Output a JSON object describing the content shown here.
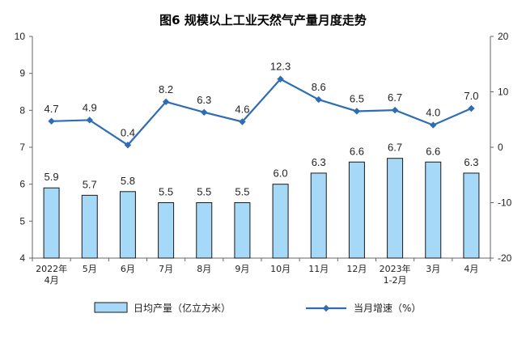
{
  "chart_data": {
    "type": "bar+line",
    "title": "图6  规模以上工业天然气产量月度走势",
    "categories": [
      "2022年\n4月",
      "5月",
      "6月",
      "7月",
      "8月",
      "9月",
      "10月",
      "11月",
      "12月",
      "2023年\n1-2月",
      "3月",
      "4月"
    ],
    "series": [
      {
        "name": "日均产量（亿立方米）",
        "type": "bar",
        "axis": "left",
        "values": [
          5.9,
          5.7,
          5.8,
          5.5,
          5.5,
          5.5,
          6.0,
          6.3,
          6.6,
          6.7,
          6.6,
          6.3
        ],
        "labels": [
          "5.9",
          "5.7",
          "5.8",
          "5.5",
          "5.5",
          "5.5",
          "6.0",
          "6.3",
          "6.6",
          "6.7",
          "6.6",
          "6.3"
        ],
        "color": "#a6d8f7"
      },
      {
        "name": "当月增速（%）",
        "type": "line",
        "axis": "right",
        "values": [
          4.7,
          4.9,
          0.4,
          8.2,
          6.3,
          4.6,
          12.3,
          8.6,
          6.5,
          6.7,
          4.0,
          7.0
        ],
        "labels": [
          "4.7",
          "4.9",
          "0.4",
          "8.2",
          "6.3",
          "4.6",
          "12.3",
          "8.6",
          "6.5",
          "6.7",
          "4.0",
          "7.0"
        ],
        "color": "#2e6db5"
      }
    ],
    "y_left": {
      "min": 4,
      "max": 10,
      "ticks": [
        "4",
        "5",
        "6",
        "7",
        "8",
        "9",
        "10"
      ]
    },
    "y_right": {
      "min": -20,
      "max": 20,
      "ticks": [
        "-20",
        "-10",
        "0",
        "10",
        "20"
      ]
    },
    "grid": false,
    "legend_position": "bottom",
    "colors": {
      "bar_fill": "#a6d8f7",
      "bar_stroke": "#1a1a1a",
      "line": "#2e6db5",
      "axis": "#666666"
    }
  }
}
